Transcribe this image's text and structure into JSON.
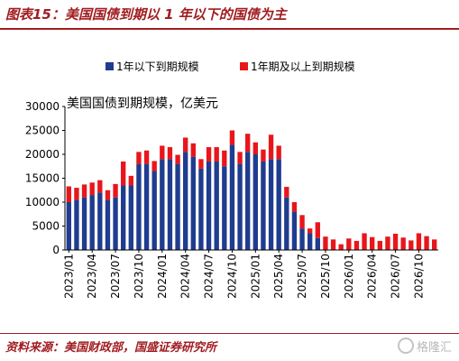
{
  "header": {
    "title": "图表15：美国国债到期以 1 年以下的国债为主"
  },
  "footer": {
    "source": "资料来源：美国财政部，国盛证券研究所",
    "watermark": "格隆汇"
  },
  "colors": {
    "brand": "#a11d21",
    "series_under_1y": "#1f3c8f",
    "series_over_1y": "#e8161b"
  },
  "icons": {
    "watermark": "gelonghui-logo-icon"
  },
  "chart_data": {
    "type": "bar",
    "stacked": true,
    "title": "",
    "annotation": "美国国债到期规模，亿美元",
    "xlabel": "",
    "ylabel": "",
    "ylim": [
      0,
      30000
    ],
    "yticks": [
      0,
      5000,
      10000,
      15000,
      20000,
      25000,
      30000
    ],
    "grid": false,
    "legend_position": "top",
    "categories": [
      "2023/01",
      "2023/02",
      "2023/03",
      "2023/04",
      "2023/05",
      "2023/06",
      "2023/07",
      "2023/08",
      "2023/09",
      "2023/10",
      "2023/11",
      "2023/12",
      "2024/01",
      "2024/02",
      "2024/03",
      "2024/04",
      "2024/05",
      "2024/06",
      "2024/07",
      "2024/08",
      "2024/09",
      "2024/10",
      "2024/11",
      "2024/12",
      "2025/01",
      "2025/02",
      "2025/03",
      "2025/04",
      "2025/05",
      "2025/06",
      "2025/07",
      "2025/08",
      "2025/09",
      "2025/10",
      "2025/11",
      "2025/12",
      "2026/01",
      "2026/02",
      "2026/03",
      "2026/04",
      "2026/05",
      "2026/06",
      "2026/07",
      "2026/08",
      "2026/09",
      "2026/10",
      "2026/11",
      "2026/12"
    ],
    "xtick_labels": [
      "2023/01",
      "2023/04",
      "2023/07",
      "2023/10",
      "2024/01",
      "2024/04",
      "2024/07",
      "2024/10",
      "2025/01",
      "2025/04",
      "2025/07",
      "2025/10",
      "2026/01",
      "2026/04",
      "2026/07",
      "2026/10"
    ],
    "series": [
      {
        "name": "1年以下到期规模",
        "values": [
          10000,
          10500,
          11000,
          11500,
          12000,
          10500,
          11000,
          13500,
          13500,
          18000,
          18000,
          16500,
          19000,
          19000,
          18000,
          20500,
          19500,
          17000,
          18500,
          18500,
          17500,
          22000,
          18000,
          20500,
          20000,
          18500,
          19000,
          19000,
          11000,
          8000,
          4500,
          3500,
          2500,
          0,
          0,
          0,
          0,
          0,
          0,
          0,
          0,
          0,
          0,
          0,
          0,
          0,
          0,
          0
        ]
      },
      {
        "name": "1年期及以上到期规模",
        "values": [
          3300,
          2500,
          2700,
          2600,
          2600,
          2000,
          2800,
          5000,
          2000,
          2500,
          2800,
          2100,
          2800,
          2500,
          1900,
          3000,
          2800,
          2000,
          3000,
          3000,
          3300,
          3000,
          2500,
          3800,
          2500,
          2500,
          5100,
          2800,
          2200,
          2000,
          2800,
          1000,
          3300,
          2800,
          2200,
          1200,
          2400,
          1900,
          3500,
          2700,
          1900,
          2800,
          3400,
          2600,
          2000,
          3500,
          2900,
          2200
        ]
      }
    ]
  }
}
